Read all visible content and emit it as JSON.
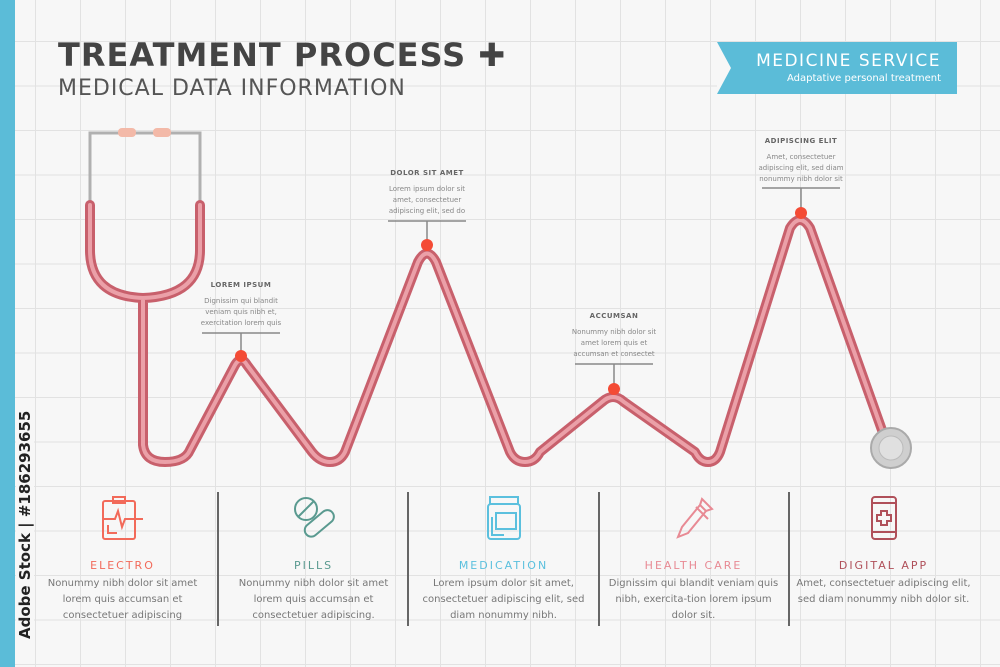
{
  "header": {
    "title": "TREATMENT PROCESS",
    "title_icon": "plus-icon",
    "subtitle": "MEDICAL DATA INFORMATION"
  },
  "banner": {
    "title": "MEDICINE SERVICE",
    "subtitle": "Adaptative personal treatment",
    "color": "#5bbcd8"
  },
  "watermark": {
    "credit": "Adobe Stock | #186293655"
  },
  "callouts": [
    {
      "heading": "LOREM IPSUM",
      "text": "Dignissim qui blandit veniam quis nibh et, exercitation lorem quis"
    },
    {
      "heading": "DOLOR SIT AMET",
      "text": "Lorem ipsum dolor sit amet, consectetuer adipiscing elit, sed do"
    },
    {
      "heading": "ACCUMSAN",
      "text": "Nonummy nibh dolor sit amet lorem quis et accumsan et consectet"
    },
    {
      "heading": "ADIPISCING ELIT",
      "text": "Amet, consectetuer adipiscing elit, sed diam nonummy nibh dolor sit"
    }
  ],
  "steps": [
    {
      "label": "ELECTRO",
      "icon": "clipboard-heartbeat-icon",
      "color": "#f26a5a",
      "text": "Nonummy nibh dolor sit amet lorem quis accumsan et consectetuer adipiscing"
    },
    {
      "label": "PILLS",
      "icon": "pills-icon",
      "color": "#5a9a90",
      "text": "Nonummy nibh dolor sit amet lorem quis accumsan et consectetuer adipiscing."
    },
    {
      "label": "MEDICATION",
      "icon": "medicine-bottle-icon",
      "color": "#5bc0de",
      "text": "Lorem ipsum dolor sit amet, consectetuer adipiscing elit, sed diam nonummy nibh."
    },
    {
      "label": "HEALTH CARE",
      "icon": "dropper-icon",
      "color": "#e88a94",
      "text": "Dignissim qui blandit veniam quis nibh, exercita-tion lorem ipsum dolor sit."
    },
    {
      "label": "DIGITAL APP",
      "icon": "smartphone-medical-icon",
      "color": "#b0505a",
      "text": "Amet, consectetuer adipiscing elit, sed diam nonummy nibh dolor sit."
    }
  ]
}
